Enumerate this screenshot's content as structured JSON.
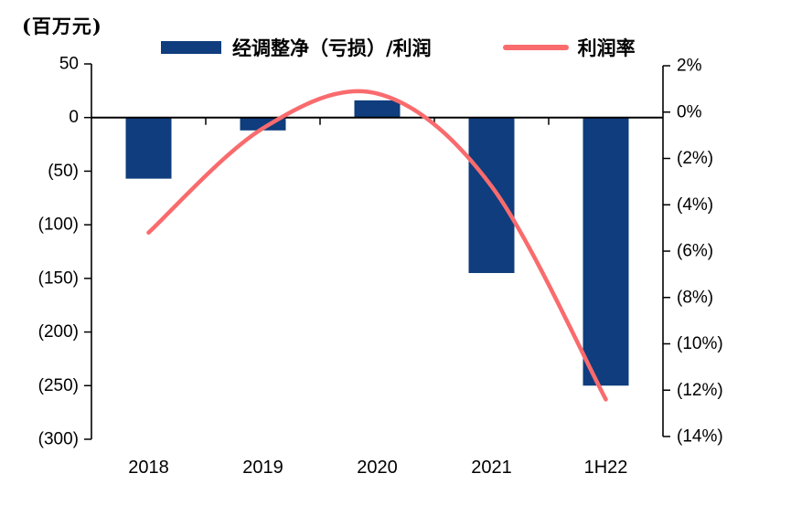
{
  "chart_data": {
    "type": "combo-bar-line",
    "categories": [
      "2018",
      "2019",
      "2020",
      "2021",
      "1H22"
    ],
    "series": [
      {
        "name": "经调整净（亏损）/利润",
        "type": "bar",
        "axis": "left",
        "color": "#0f3d7d",
        "values": [
          -57,
          -12,
          16,
          -145,
          -250
        ]
      },
      {
        "name": "利润率",
        "type": "line",
        "axis": "right",
        "color": "#f96b6d",
        "values": [
          -5.2,
          -0.7,
          0.8,
          -3.2,
          -12.4
        ]
      }
    ],
    "left_axis": {
      "title": "(百万元)",
      "max": 50,
      "min": -300,
      "tick_values": [
        50,
        0,
        -50,
        -100,
        -150,
        -200,
        -250,
        -300
      ],
      "tick_labels": [
        "50",
        "0",
        "(50)",
        "(100)",
        "(150)",
        "(200)",
        "(250)",
        "(300)"
      ]
    },
    "right_axis": {
      "max": 2,
      "min": -14,
      "tick_values": [
        2,
        0,
        -2,
        -4,
        -6,
        -8,
        -10,
        -12,
        -14
      ],
      "tick_labels": [
        "2%",
        "0%",
        "(2%)",
        "(4%)",
        "(6%)",
        "(8%)",
        "(10%)",
        "(12%)",
        "(14%)"
      ]
    },
    "legend_position": "top",
    "grid": false,
    "axis_color": "#000000"
  }
}
